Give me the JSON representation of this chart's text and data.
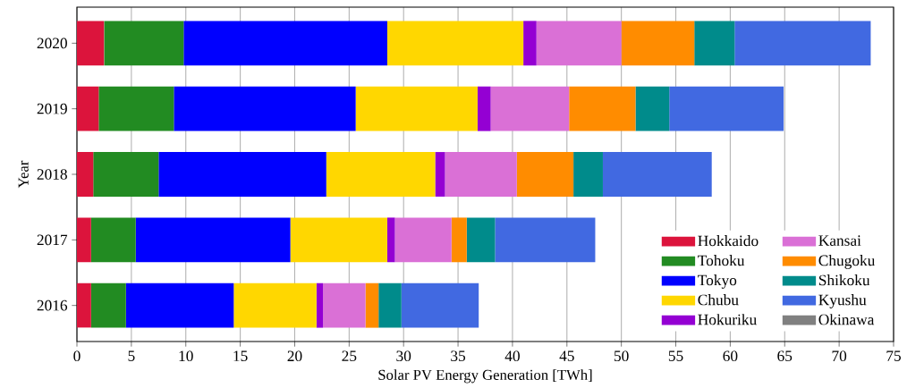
{
  "chart_data": {
    "type": "bar",
    "orientation": "horizontal",
    "stacked": true,
    "xlabel": "Solar PV Energy Generation [TWh]",
    "ylabel": "Year",
    "categories": [
      "2020",
      "2019",
      "2018",
      "2017",
      "2016"
    ],
    "series": [
      {
        "name": "Hokkaido",
        "color": "#dc143c",
        "values": [
          2.5,
          2.0,
          1.5,
          1.3,
          1.3
        ]
      },
      {
        "name": "Tohoku",
        "color": "#228b22",
        "values": [
          7.3,
          6.9,
          6.0,
          4.1,
          3.2
        ]
      },
      {
        "name": "Tokyo",
        "color": "#0000ff",
        "values": [
          18.7,
          16.7,
          15.4,
          14.2,
          9.9
        ]
      },
      {
        "name": "Chubu",
        "color": "#ffd700",
        "values": [
          12.5,
          11.2,
          10.0,
          8.9,
          7.6
        ]
      },
      {
        "name": "Hokuriku",
        "color": "#9400d3",
        "values": [
          1.2,
          1.2,
          0.9,
          0.7,
          0.6
        ]
      },
      {
        "name": "Kansai",
        "color": "#da70d6",
        "values": [
          7.8,
          7.2,
          6.6,
          5.2,
          3.9
        ]
      },
      {
        "name": "Chugoku",
        "color": "#ff8c00",
        "values": [
          6.7,
          6.1,
          5.2,
          1.4,
          1.2
        ]
      },
      {
        "name": "Shikoku",
        "color": "#008b8b",
        "values": [
          3.7,
          3.1,
          2.7,
          2.6,
          2.1
        ]
      },
      {
        "name": "Kyushu",
        "color": "#4169e1",
        "values": [
          12.5,
          10.5,
          10.0,
          9.2,
          7.1
        ]
      },
      {
        "name": "Okinawa",
        "color": "#808080",
        "values": [
          0,
          0,
          0,
          0,
          0
        ]
      }
    ],
    "xlim": [
      0,
      75
    ],
    "xticks": [
      0,
      5,
      10,
      15,
      20,
      25,
      30,
      35,
      40,
      45,
      50,
      55,
      60,
      65,
      70,
      75
    ],
    "grid": "x",
    "legend": "bottom right"
  }
}
